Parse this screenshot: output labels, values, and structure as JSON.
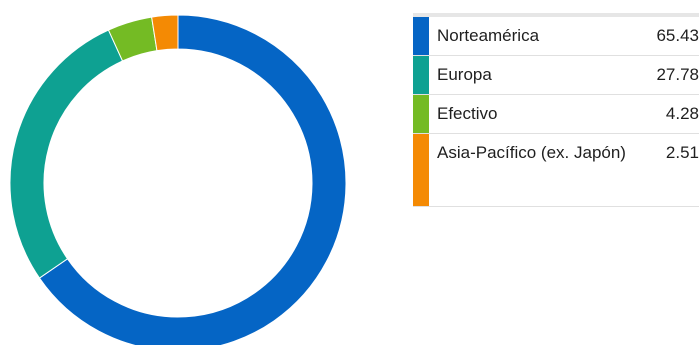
{
  "chart_data": {
    "type": "pie",
    "variant": "donut",
    "start_angle_deg": 0,
    "direction": "clockwise",
    "slices": [
      {
        "label": "Norteamérica",
        "value": 65.43,
        "color": "#0565c5"
      },
      {
        "label": "Europa",
        "value": 27.78,
        "color": "#0ea192"
      },
      {
        "label": "Efectivo",
        "value": 4.28,
        "color": "#74bb24"
      },
      {
        "label": "Asia-Pacífico (ex. Japón)",
        "value": 2.51,
        "color": "#f48a04"
      }
    ]
  },
  "legend": {
    "rows": [
      {
        "label": "Norteamérica",
        "value": "65.43"
      },
      {
        "label": "Europa",
        "value": "27.78"
      },
      {
        "label": "Efectivo",
        "value": "4.28"
      },
      {
        "label": "Asia-Pacífico (ex. Japón)",
        "value": "2.51"
      }
    ]
  }
}
